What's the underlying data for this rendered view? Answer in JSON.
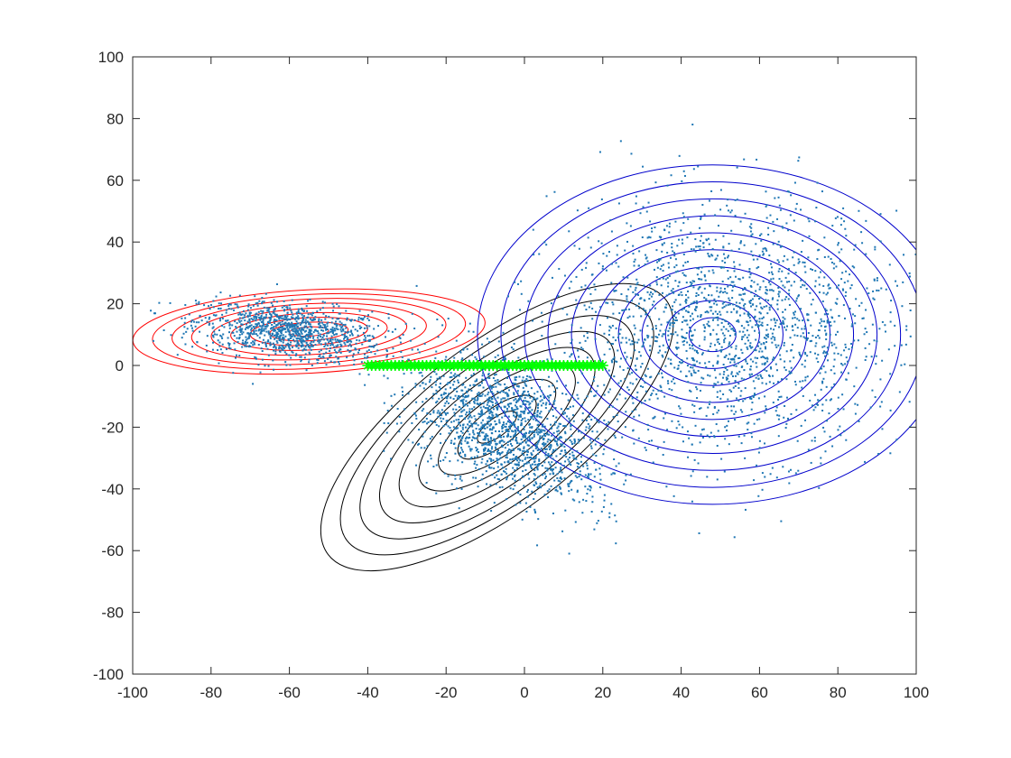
{
  "chart_data": {
    "type": "scatter",
    "title": "",
    "xlabel": "",
    "ylabel": "",
    "xlim": [
      -100,
      100
    ],
    "ylim": [
      -100,
      100
    ],
    "xticks": [
      -100,
      -80,
      -60,
      -40,
      -20,
      0,
      20,
      40,
      60,
      80,
      100
    ],
    "yticks": [
      -100,
      -80,
      -60,
      -40,
      -20,
      0,
      20,
      40,
      60,
      80,
      100
    ],
    "grid": false,
    "legend": "none",
    "colors": {
      "points": "#1f77b4",
      "line": "#00ff00",
      "red_contours": "#ff0000",
      "black_contours": "#000000",
      "blue_contours": "#0000cc"
    },
    "line_series": {
      "marker": "asterisk",
      "x_start": -40,
      "x_end": 20,
      "step": 1,
      "y": 0
    },
    "contours": [
      {
        "color": "red",
        "center": [
          -55,
          11
        ],
        "rx": [
          5,
          10,
          15,
          20,
          25,
          30,
          35,
          40,
          45
        ],
        "ry": [
          1.5,
          3,
          4.5,
          6,
          7.5,
          9,
          10.5,
          12,
          13.5
        ],
        "angle_deg": -3
      },
      {
        "color": "black",
        "center": [
          -7,
          -20
        ],
        "rx": [
          6,
          12,
          18,
          24,
          30,
          36,
          42,
          48,
          54
        ],
        "ry": [
          3,
          6,
          9,
          12,
          15,
          18,
          21,
          24,
          27
        ],
        "angle_deg": -37
      },
      {
        "color": "blue",
        "center": [
          48,
          10
        ],
        "rx": [
          6,
          12,
          18,
          24,
          30,
          36,
          42,
          48,
          54,
          60
        ],
        "ry": [
          5.5,
          11,
          16.5,
          22,
          27.5,
          33,
          38.5,
          44,
          49.5,
          55
        ],
        "angle_deg": 0
      }
    ],
    "point_clusters": [
      {
        "name": "red-cluster",
        "n": 1100,
        "center": [
          -60,
          11
        ],
        "sx": 12,
        "sy": 4.5,
        "angle_deg": -8
      },
      {
        "name": "black-cluster",
        "n": 1500,
        "center": [
          -5,
          -20
        ],
        "sx": 14,
        "sy": 9,
        "angle_deg": -42
      },
      {
        "name": "blue-cluster",
        "n": 1900,
        "center": [
          52,
          12
        ],
        "sx": 22,
        "sy": 20,
        "angle_deg": 0
      }
    ]
  }
}
